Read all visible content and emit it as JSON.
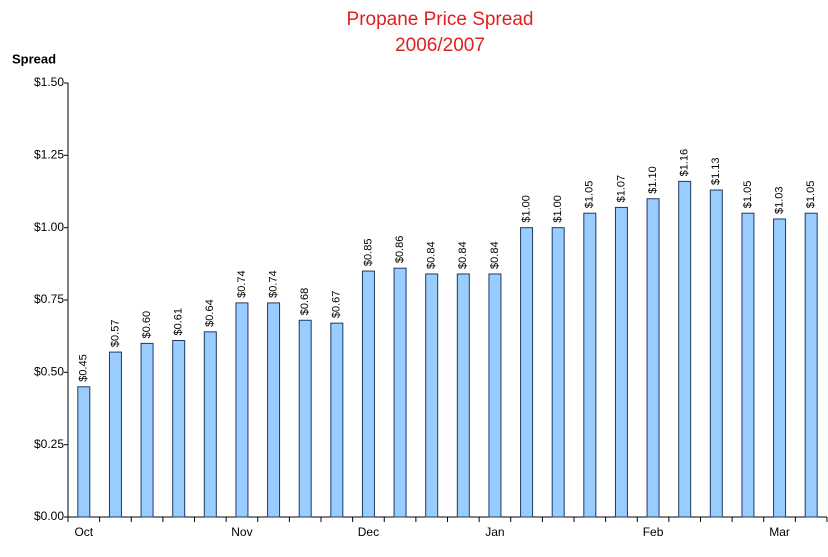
{
  "chart_data": {
    "type": "bar",
    "title": "Propane Price Spread",
    "subtitle": "2006/2007",
    "y_axis_label": "Spread",
    "categories": [
      "Oct",
      null,
      null,
      null,
      null,
      "Nov",
      null,
      null,
      null,
      "Dec",
      null,
      null,
      null,
      "Jan",
      null,
      null,
      null,
      null,
      "Feb",
      null,
      null,
      null,
      "Mar",
      null
    ],
    "values": [
      0.45,
      0.57,
      0.6,
      0.61,
      0.64,
      0.74,
      0.74,
      0.68,
      0.67,
      0.85,
      0.86,
      0.84,
      0.84,
      0.84,
      1.0,
      1.0,
      1.05,
      1.07,
      1.1,
      1.16,
      1.13,
      1.05,
      1.03,
      1.05
    ],
    "value_labels": [
      "$0.45",
      "$0.57",
      "$0.60",
      "$0.61",
      "$0.64",
      "$0.74",
      "$0.74",
      "$0.68",
      "$0.67",
      "$0.85",
      "$0.86",
      "$0.84",
      "$0.84",
      "$0.84",
      "$1.00",
      "$1.00",
      "$1.05",
      "$1.07",
      "$1.10",
      "$1.16",
      "$1.13",
      "$1.05",
      "$1.03",
      "$1.05"
    ],
    "color": "#99ccff",
    "ylim": [
      0,
      1.5
    ],
    "yticks": [
      {
        "value": 0,
        "label": "$0.00"
      },
      {
        "value": 0.25,
        "label": "$0.25"
      },
      {
        "value": 0.5,
        "label": "$0.50"
      },
      {
        "value": 0.75,
        "label": "$0.75"
      },
      {
        "value": 1.0,
        "label": "$1.00"
      },
      {
        "value": 1.25,
        "label": "$1.25"
      },
      {
        "value": 1.5,
        "label": "$1.50"
      }
    ],
    "grid": false
  }
}
